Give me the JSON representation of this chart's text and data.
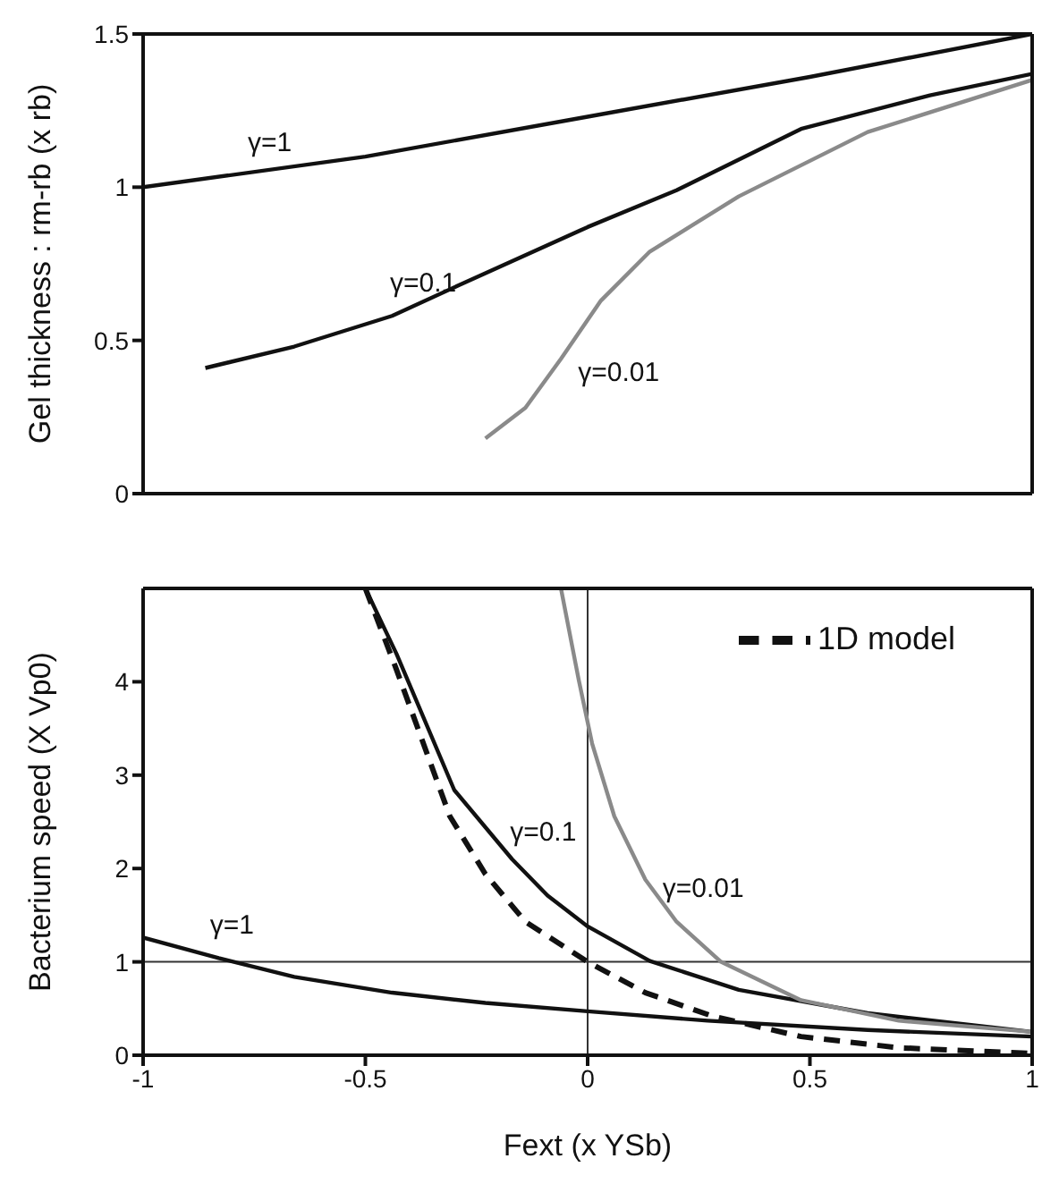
{
  "chart_data": [
    {
      "type": "line",
      "ylabel": "Gel thickness : rm-rb (x rb)",
      "xlim": [
        -1,
        1
      ],
      "xticks": [
        -1,
        -0.5,
        0,
        0.5,
        1
      ],
      "ylim": [
        0,
        1.5
      ],
      "yticks": [
        0,
        0.5,
        1,
        1.5
      ],
      "tick_labels": "y",
      "legend": false,
      "series": [
        {
          "name": "γ=1",
          "color": "#111111",
          "x": [
            -1,
            -0.5,
            0,
            0.5,
            1
          ],
          "values": [
            1.0,
            1.1,
            1.23,
            1.36,
            1.5
          ]
        },
        {
          "name": "γ=0.1",
          "color": "#111111",
          "x": [
            -0.86,
            -0.66,
            -0.44,
            -0.29,
            0,
            0.2,
            0.48,
            0.77,
            1
          ],
          "values": [
            0.41,
            0.48,
            0.58,
            0.68,
            0.87,
            0.99,
            1.19,
            1.3,
            1.37
          ]
        },
        {
          "name": "γ=0.01",
          "color": "#8a8a8a",
          "x": [
            -0.23,
            -0.14,
            -0.06,
            0.03,
            0.14,
            0.34,
            0.63,
            1
          ],
          "values": [
            0.18,
            0.28,
            0.44,
            0.63,
            0.79,
            0.97,
            1.18,
            1.35
          ]
        }
      ]
    },
    {
      "type": "line",
      "xlabel": "Fext (x YSb)",
      "ylabel": "Bacterium speed (X Vp0)",
      "xlim": [
        -1,
        1
      ],
      "xticks": [
        -1,
        -0.5,
        0,
        0.5,
        1
      ],
      "ylim": [
        0,
        5
      ],
      "yticks": [
        0,
        1,
        2,
        3,
        4
      ],
      "legend": "top right",
      "ref_lines": [
        {
          "axis": "y",
          "value": 1
        },
        {
          "axis": "x",
          "value": 0
        }
      ],
      "series": [
        {
          "name": "γ=1",
          "color": "#111111",
          "x": [
            -1,
            -0.83,
            -0.66,
            -0.44,
            -0.23,
            0,
            0.27,
            0.63,
            1
          ],
          "values": [
            1.26,
            1.04,
            0.84,
            0.67,
            0.56,
            0.47,
            0.37,
            0.27,
            0.2
          ]
        },
        {
          "name": "γ=0.1",
          "color": "#111111",
          "x": [
            -0.5,
            -0.43,
            -0.3,
            -0.17,
            -0.09,
            0,
            0.14,
            0.34,
            0.63,
            1
          ],
          "values": [
            5,
            4.3,
            2.84,
            2.1,
            1.71,
            1.38,
            1.01,
            0.7,
            0.45,
            0.25
          ]
        },
        {
          "name": "γ=0.01",
          "color": "#8a8a8a",
          "x": [
            -0.06,
            -0.02,
            0.01,
            0.06,
            0.13,
            0.2,
            0.3,
            0.48,
            0.7,
            1
          ],
          "values": [
            5,
            4.02,
            3.34,
            2.56,
            1.88,
            1.43,
            1.0,
            0.59,
            0.37,
            0.25
          ]
        },
        {
          "name": "1D model",
          "color": "#111111",
          "line_style": "dashed",
          "x": [
            -0.5,
            -0.43,
            -0.31,
            -0.23,
            -0.14,
            0,
            0.13,
            0.28,
            0.48,
            0.7,
            1
          ],
          "values": [
            5,
            4.13,
            2.56,
            1.94,
            1.43,
            1.0,
            0.67,
            0.42,
            0.2,
            0.08,
            0.02
          ]
        }
      ]
    }
  ]
}
